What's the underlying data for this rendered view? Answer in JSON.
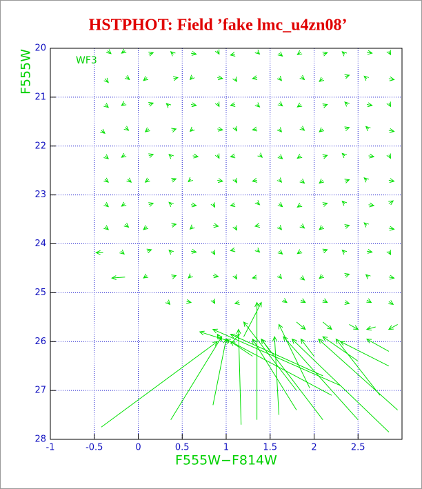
{
  "chart_data": {
    "type": "quiver",
    "title": "HSTPHOT: Field ’fake lmc_u4zn08’",
    "annotation": "WF3",
    "xlabel": "F555W−F814W",
    "ylabel": "F555W",
    "xlim": [
      -1,
      3
    ],
    "ylim": [
      28,
      20
    ],
    "xticks": [
      -1,
      -0.5,
      0,
      0.5,
      1,
      1.5,
      2,
      2.5
    ],
    "yticks": [
      20,
      21,
      22,
      23,
      24,
      25,
      26,
      27,
      28
    ],
    "grid": true,
    "color": "#00e000",
    "arrows": [
      [
        -0.35,
        20.05,
        -0.31,
        20.11
      ],
      [
        -0.15,
        20.05,
        -0.19,
        20.1
      ],
      [
        0.12,
        20.12,
        0.17,
        20.09
      ],
      [
        0.4,
        20.12,
        0.37,
        20.07
      ],
      [
        0.6,
        20.1,
        0.66,
        20.12
      ],
      [
        0.9,
        20.05,
        0.92,
        20.12
      ],
      [
        1.1,
        20.12,
        1.05,
        20.14
      ],
      [
        1.35,
        20.07,
        1.38,
        20.12
      ],
      [
        1.6,
        20.1,
        1.64,
        20.16
      ],
      [
        1.85,
        20.08,
        1.81,
        20.13
      ],
      [
        2.1,
        20.12,
        2.15,
        20.09
      ],
      [
        2.35,
        20.12,
        2.32,
        20.07
      ],
      [
        2.6,
        20.08,
        2.66,
        20.1
      ],
      [
        2.85,
        20.06,
        2.87,
        20.13
      ],
      [
        -0.38,
        20.62,
        -0.34,
        20.7
      ],
      [
        -0.14,
        20.58,
        -0.1,
        20.64
      ],
      [
        0.1,
        20.6,
        0.06,
        20.66
      ],
      [
        0.4,
        20.62,
        0.45,
        20.6
      ],
      [
        0.62,
        20.58,
        0.59,
        20.64
      ],
      [
        0.9,
        20.6,
        0.96,
        20.62
      ],
      [
        1.1,
        20.62,
        1.12,
        20.68
      ],
      [
        1.35,
        20.6,
        1.3,
        20.62
      ],
      [
        1.6,
        20.6,
        1.63,
        20.66
      ],
      [
        1.85,
        20.58,
        1.89,
        20.64
      ],
      [
        2.1,
        20.62,
        2.06,
        20.68
      ],
      [
        2.35,
        20.58,
        2.4,
        20.55
      ],
      [
        2.6,
        20.62,
        2.57,
        20.57
      ],
      [
        2.85,
        20.62,
        2.91,
        20.64
      ],
      [
        -0.38,
        21.15,
        -0.34,
        21.21
      ],
      [
        -0.15,
        21.12,
        -0.19,
        21.17
      ],
      [
        0.12,
        21.15,
        0.17,
        21.12
      ],
      [
        0.35,
        21.18,
        0.32,
        21.13
      ],
      [
        0.6,
        21.15,
        0.66,
        21.17
      ],
      [
        0.9,
        21.12,
        0.92,
        21.19
      ],
      [
        1.1,
        21.15,
        1.05,
        21.17
      ],
      [
        1.35,
        21.15,
        1.38,
        21.2
      ],
      [
        1.6,
        21.12,
        1.64,
        21.18
      ],
      [
        1.85,
        21.15,
        1.81,
        21.2
      ],
      [
        2.1,
        21.18,
        2.15,
        21.15
      ],
      [
        2.38,
        21.15,
        2.35,
        21.1
      ],
      [
        2.6,
        21.15,
        2.66,
        21.17
      ],
      [
        2.85,
        21.12,
        2.87,
        21.19
      ],
      [
        -0.42,
        21.68,
        -0.38,
        21.74
      ],
      [
        -0.15,
        21.62,
        -0.11,
        21.68
      ],
      [
        0.12,
        21.65,
        0.08,
        21.71
      ],
      [
        0.38,
        21.68,
        0.43,
        21.65
      ],
      [
        0.62,
        21.65,
        0.59,
        21.7
      ],
      [
        0.9,
        21.65,
        0.96,
        21.67
      ],
      [
        1.1,
        21.62,
        1.12,
        21.69
      ],
      [
        1.35,
        21.65,
        1.3,
        21.67
      ],
      [
        1.6,
        21.65,
        1.63,
        21.71
      ],
      [
        1.85,
        21.62,
        1.89,
        21.68
      ],
      [
        2.1,
        21.65,
        2.06,
        21.71
      ],
      [
        2.35,
        21.65,
        2.4,
        21.62
      ],
      [
        2.62,
        21.65,
        2.59,
        21.6
      ],
      [
        2.85,
        21.68,
        2.91,
        21.7
      ],
      [
        -0.38,
        22.2,
        -0.34,
        22.26
      ],
      [
        -0.15,
        22.18,
        -0.19,
        22.23
      ],
      [
        0.12,
        22.2,
        0.17,
        22.17
      ],
      [
        0.38,
        22.22,
        0.35,
        22.17
      ],
      [
        0.62,
        22.2,
        0.68,
        22.22
      ],
      [
        0.9,
        22.18,
        0.92,
        22.25
      ],
      [
        1.1,
        22.2,
        1.05,
        22.22
      ],
      [
        1.38,
        22.18,
        1.41,
        22.23
      ],
      [
        1.6,
        22.2,
        1.64,
        22.26
      ],
      [
        1.85,
        22.2,
        1.81,
        22.25
      ],
      [
        2.1,
        22.22,
        2.15,
        22.19
      ],
      [
        2.35,
        22.2,
        2.32,
        22.15
      ],
      [
        2.62,
        22.2,
        2.68,
        22.22
      ],
      [
        2.85,
        22.18,
        2.87,
        22.25
      ],
      [
        -0.38,
        22.68,
        -0.34,
        22.74
      ],
      [
        -0.12,
        22.68,
        -0.08,
        22.74
      ],
      [
        0.12,
        22.68,
        0.08,
        22.74
      ],
      [
        0.38,
        22.7,
        0.43,
        22.67
      ],
      [
        0.6,
        22.68,
        0.57,
        22.73
      ],
      [
        0.9,
        22.7,
        0.96,
        22.72
      ],
      [
        1.1,
        22.68,
        1.12,
        22.75
      ],
      [
        1.35,
        22.7,
        1.3,
        22.72
      ],
      [
        1.6,
        22.68,
        1.63,
        22.74
      ],
      [
        1.85,
        22.7,
        1.89,
        22.76
      ],
      [
        2.1,
        22.7,
        2.06,
        22.76
      ],
      [
        2.35,
        22.72,
        2.4,
        22.69
      ],
      [
        2.6,
        22.7,
        2.57,
        22.65
      ],
      [
        2.85,
        22.7,
        2.91,
        22.72
      ],
      [
        -0.38,
        23.18,
        -0.34,
        23.24
      ],
      [
        -0.15,
        23.18,
        -0.19,
        23.23
      ],
      [
        0.12,
        23.2,
        0.17,
        23.17
      ],
      [
        0.38,
        23.2,
        0.35,
        23.15
      ],
      [
        0.6,
        23.2,
        0.66,
        23.22
      ],
      [
        0.85,
        23.18,
        0.87,
        23.25
      ],
      [
        1.1,
        23.2,
        1.05,
        23.22
      ],
      [
        1.35,
        23.15,
        1.38,
        23.2
      ],
      [
        1.6,
        23.18,
        1.64,
        23.24
      ],
      [
        1.85,
        23.2,
        1.81,
        23.25
      ],
      [
        2.1,
        23.2,
        2.15,
        23.17
      ],
      [
        2.35,
        23.18,
        2.32,
        23.13
      ],
      [
        2.62,
        23.2,
        2.68,
        23.22
      ],
      [
        2.85,
        23.18,
        2.9,
        23.12
      ],
      [
        -0.38,
        23.65,
        -0.34,
        23.71
      ],
      [
        -0.15,
        23.6,
        -0.11,
        23.66
      ],
      [
        0.1,
        23.65,
        0.06,
        23.71
      ],
      [
        0.38,
        23.62,
        0.43,
        23.6
      ],
      [
        0.62,
        23.65,
        0.59,
        23.7
      ],
      [
        0.85,
        23.62,
        0.91,
        23.64
      ],
      [
        1.1,
        23.65,
        1.12,
        23.72
      ],
      [
        1.38,
        23.62,
        1.33,
        23.64
      ],
      [
        1.6,
        23.65,
        1.63,
        23.71
      ],
      [
        1.85,
        23.62,
        1.89,
        23.68
      ],
      [
        2.1,
        23.65,
        2.06,
        23.71
      ],
      [
        2.35,
        23.65,
        2.4,
        23.62
      ],
      [
        2.6,
        23.62,
        2.57,
        23.57
      ],
      [
        2.85,
        23.68,
        2.91,
        23.7
      ],
      [
        -0.4,
        24.18,
        -0.48,
        24.18
      ],
      [
        -0.2,
        24.15,
        -0.16,
        24.21
      ],
      [
        0.1,
        24.15,
        0.15,
        24.12
      ],
      [
        0.38,
        24.18,
        0.35,
        24.13
      ],
      [
        0.6,
        24.15,
        0.66,
        24.17
      ],
      [
        0.85,
        24.15,
        0.87,
        24.22
      ],
      [
        1.1,
        24.12,
        1.05,
        24.14
      ],
      [
        1.35,
        24.12,
        1.38,
        24.17
      ],
      [
        1.6,
        24.15,
        1.64,
        24.21
      ],
      [
        1.85,
        24.15,
        1.81,
        24.2
      ],
      [
        2.1,
        24.15,
        2.15,
        24.12
      ],
      [
        2.35,
        24.18,
        2.32,
        24.13
      ],
      [
        2.6,
        24.15,
        2.66,
        24.17
      ],
      [
        2.85,
        24.15,
        2.87,
        24.22
      ],
      [
        -0.15,
        24.68,
        -0.3,
        24.7
      ],
      [
        0.1,
        24.65,
        0.06,
        24.7
      ],
      [
        0.38,
        24.68,
        0.43,
        24.65
      ],
      [
        0.6,
        24.65,
        0.57,
        24.7
      ],
      [
        0.85,
        24.65,
        0.91,
        24.67
      ],
      [
        1.1,
        24.65,
        1.12,
        24.72
      ],
      [
        1.35,
        24.68,
        1.3,
        24.7
      ],
      [
        1.6,
        24.65,
        1.63,
        24.71
      ],
      [
        1.85,
        24.68,
        1.89,
        24.74
      ],
      [
        2.1,
        24.65,
        2.06,
        24.71
      ],
      [
        2.35,
        24.65,
        2.4,
        24.62
      ],
      [
        2.62,
        24.68,
        2.59,
        24.63
      ],
      [
        2.85,
        24.68,
        2.91,
        24.7
      ],
      [
        0.33,
        25.18,
        0.36,
        25.24
      ],
      [
        0.55,
        25.18,
        0.6,
        25.2
      ],
      [
        0.85,
        25.15,
        0.87,
        25.22
      ],
      [
        1.15,
        25.2,
        1.1,
        25.22
      ],
      [
        1.65,
        25.15,
        1.69,
        25.2
      ],
      [
        1.85,
        25.15,
        1.9,
        25.2
      ],
      [
        2.1,
        25.15,
        2.15,
        25.2
      ],
      [
        2.35,
        25.2,
        2.4,
        25.22
      ],
      [
        2.6,
        25.15,
        2.65,
        25.2
      ],
      [
        2.85,
        25.18,
        2.9,
        25.24
      ],
      [
        1.8,
        25.6,
        1.9,
        25.75
      ],
      [
        2.1,
        25.6,
        2.2,
        25.75
      ],
      [
        2.4,
        25.65,
        2.5,
        25.75
      ],
      [
        2.7,
        25.7,
        2.6,
        25.75
      ],
      [
        2.95,
        25.65,
        2.85,
        25.75
      ],
      [
        -0.42,
        27.75,
        0.9,
        26.0
      ],
      [
        0.37,
        27.6,
        0.95,
        25.9
      ],
      [
        0.85,
        27.3,
        1.0,
        25.95
      ],
      [
        1.17,
        27.7,
        1.14,
        25.75
      ],
      [
        1.35,
        27.6,
        1.35,
        25.2
      ],
      [
        1.6,
        27.5,
        1.55,
        25.9
      ],
      [
        1.8,
        27.4,
        1.3,
        25.95
      ],
      [
        2.1,
        27.6,
        1.4,
        25.95
      ],
      [
        2.5,
        27.6,
        1.65,
        25.9
      ],
      [
        2.85,
        27.85,
        1.75,
        25.95
      ],
      [
        2.95,
        27.4,
        2.05,
        25.95
      ],
      [
        2.75,
        27.1,
        2.25,
        25.95
      ],
      [
        2.3,
        26.9,
        0.85,
        25.75
      ],
      [
        2.1,
        26.7,
        1.05,
        25.85
      ],
      [
        2.85,
        26.5,
        2.3,
        26.0
      ],
      [
        2.85,
        26.2,
        2.6,
        25.95
      ],
      [
        2.2,
        27.1,
        1.0,
        25.95
      ],
      [
        1.95,
        26.95,
        1.6,
        25.65
      ],
      [
        1.8,
        27.0,
        1.2,
        25.6
      ],
      [
        1.3,
        26.3,
        1.05,
        26.0
      ],
      [
        1.05,
        26.0,
        0.7,
        25.8
      ],
      [
        2.5,
        26.4,
        2.1,
        25.9
      ],
      [
        1.5,
        26.2,
        1.4,
        25.95
      ],
      [
        2.0,
        26.3,
        1.85,
        25.95
      ],
      [
        1.2,
        25.9,
        1.4,
        25.2
      ],
      [
        1.05,
        26.05,
        1.15,
        25.85
      ],
      [
        0.95,
        26.0,
        0.9,
        25.85
      ]
    ]
  }
}
